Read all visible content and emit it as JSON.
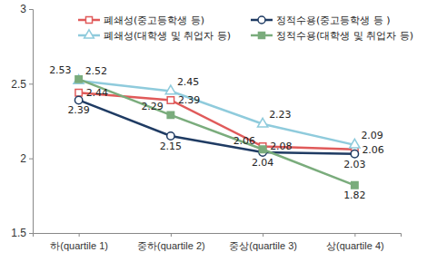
{
  "chart_data": {
    "type": "line",
    "categories": [
      "하(quartile 1)",
      "중하(quartile 2)",
      "중상(quartile 3)",
      "상(quartile 4)"
    ],
    "series": [
      {
        "name": "폐쇄성(중고등학생 등)",
        "color": "#e05a5a",
        "marker": "square-open",
        "values": [
          2.44,
          2.39,
          2.08,
          2.06
        ]
      },
      {
        "name": "정적수용(중고등학생 등 )",
        "color": "#1f3b63",
        "marker": "circle-open",
        "values": [
          2.39,
          2.15,
          2.04,
          2.03
        ]
      },
      {
        "name": "폐쇄성(대학생 및 취업자 등)",
        "color": "#8fcbdc",
        "marker": "triangle-open",
        "values": [
          2.52,
          2.45,
          2.23,
          2.09
        ]
      },
      {
        "name": "정적수용(대학생 및 취업자 등)",
        "color": "#7aac7c",
        "marker": "square",
        "values": [
          2.53,
          2.29,
          2.06,
          1.82
        ]
      }
    ],
    "ylim": [
      1.5,
      3
    ],
    "yticks": [
      1.5,
      2,
      2.5,
      3
    ],
    "grid": false,
    "legend": "top",
    "data_labels": true
  }
}
